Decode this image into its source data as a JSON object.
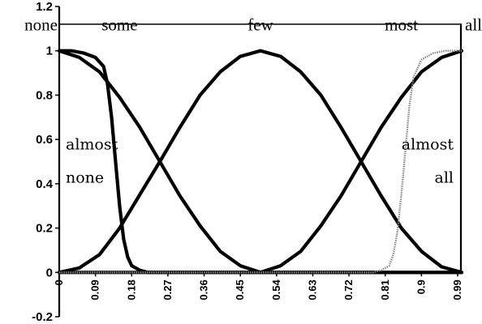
{
  "chart_data": {
    "type": "line",
    "title": "",
    "xlabel": "",
    "ylabel": "",
    "xlim": [
      0,
      1
    ],
    "ylim": [
      -0.2,
      1.2
    ],
    "grid": false,
    "y_ticks": [
      "-0.2",
      "0",
      "0.2",
      "0.4",
      "0.6",
      "0.8",
      "1",
      "1.2"
    ],
    "y_tick_values": [
      -0.2,
      0,
      0.2,
      0.4,
      0.6,
      0.8,
      1,
      1.2
    ],
    "x_ticks": [
      "0",
      "0.09",
      "0.18",
      "0.27",
      "0.36",
      "0.45",
      "0.54",
      "0.63",
      "0.72",
      "0.81",
      "0.9",
      "0.99"
    ],
    "x_tick_values": [
      0,
      0.09,
      0.18,
      0.27,
      0.36,
      0.45,
      0.54,
      0.63,
      0.72,
      0.81,
      0.9,
      0.99
    ],
    "top_labels": [
      {
        "text": "none",
        "x": 0.0
      },
      {
        "text": "some",
        "x": 0.15
      },
      {
        "text": "few",
        "x": 0.5
      },
      {
        "text": "most",
        "x": 0.85
      },
      {
        "text": "all",
        "x": 1.0
      }
    ],
    "annotations": [
      {
        "lines": [
          "almost",
          "none"
        ],
        "x": 0.02,
        "y": [
          0.58,
          0.43
        ],
        "anchor": "start"
      },
      {
        "lines": [
          "almost",
          "all"
        ],
        "x": 0.99,
        "y": [
          0.58,
          0.43
        ],
        "anchor": "end"
      }
    ],
    "series": [
      {
        "name": "some",
        "style": "bold",
        "x": [
          0,
          0.05,
          0.1,
          0.15,
          0.2,
          0.25,
          0.3,
          0.35,
          0.4,
          0.45,
          0.5,
          0.55,
          0.6,
          0.65,
          0.7,
          0.75,
          0.8,
          0.85,
          0.9,
          0.95,
          1.0
        ],
        "y": [
          1.0,
          0.97,
          0.905,
          0.79,
          0.655,
          0.5,
          0.345,
          0.21,
          0.095,
          0.03,
          0.0,
          0.0,
          0.0,
          0.0,
          0.0,
          0.0,
          0.0,
          0.0,
          0.0,
          0.0,
          0.0
        ]
      },
      {
        "name": "few",
        "style": "bold",
        "x": [
          0,
          0.05,
          0.1,
          0.15,
          0.2,
          0.25,
          0.3,
          0.35,
          0.4,
          0.45,
          0.5,
          0.55,
          0.6,
          0.65,
          0.7,
          0.75,
          0.8,
          0.85,
          0.9,
          0.95,
          1.0
        ],
        "y": [
          0.0,
          0.02,
          0.08,
          0.2,
          0.35,
          0.5,
          0.655,
          0.8,
          0.905,
          0.975,
          1.0,
          0.975,
          0.905,
          0.8,
          0.655,
          0.5,
          0.345,
          0.2,
          0.095,
          0.025,
          0.0
        ]
      },
      {
        "name": "most",
        "style": "bold",
        "x": [
          0,
          0.05,
          0.1,
          0.15,
          0.2,
          0.25,
          0.3,
          0.35,
          0.4,
          0.45,
          0.5,
          0.55,
          0.6,
          0.65,
          0.7,
          0.75,
          0.8,
          0.85,
          0.9,
          0.95,
          1.0
        ],
        "y": [
          0.0,
          0.0,
          0.0,
          0.0,
          0.0,
          0.0,
          0.0,
          0.0,
          0.0,
          0.0,
          0.0,
          0.03,
          0.095,
          0.21,
          0.345,
          0.5,
          0.655,
          0.79,
          0.905,
          0.97,
          1.0
        ]
      },
      {
        "name": "almost none",
        "style": "bold",
        "x": [
          0,
          0.03,
          0.06,
          0.09,
          0.11,
          0.12,
          0.13,
          0.14,
          0.15,
          0.16,
          0.17,
          0.18,
          0.2,
          0.22,
          0.25,
          1.0
        ],
        "y": [
          1.0,
          1.0,
          0.99,
          0.97,
          0.93,
          0.85,
          0.7,
          0.5,
          0.3,
          0.15,
          0.07,
          0.03,
          0.01,
          0.0,
          0.0,
          0.0
        ]
      },
      {
        "name": "almost all",
        "style": "gray",
        "x": [
          0,
          0.78,
          0.8,
          0.82,
          0.83,
          0.84,
          0.85,
          0.86,
          0.87,
          0.88,
          0.9,
          0.93,
          0.96,
          1.0
        ],
        "y": [
          0.0,
          0.0,
          0.01,
          0.03,
          0.08,
          0.18,
          0.35,
          0.55,
          0.75,
          0.88,
          0.96,
          0.99,
          1.0,
          1.0
        ]
      }
    ]
  }
}
